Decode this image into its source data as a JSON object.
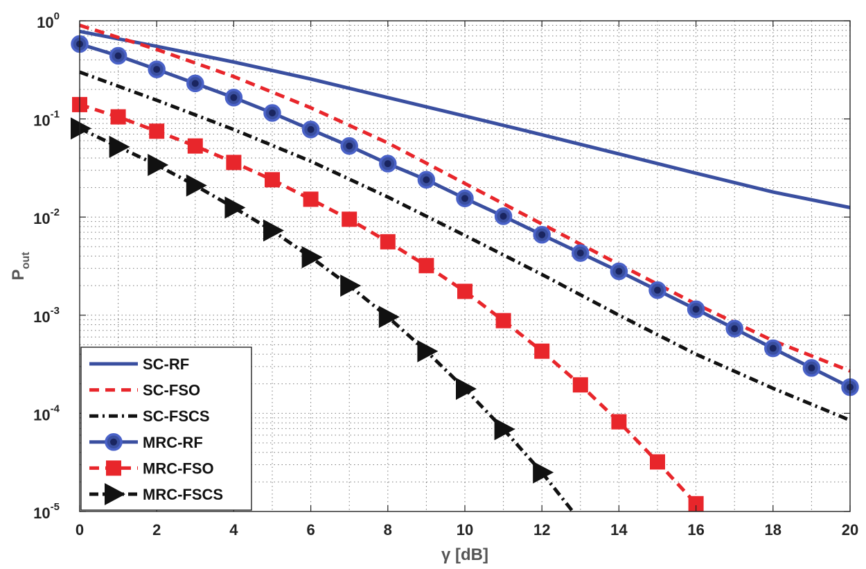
{
  "chart_data": {
    "type": "line",
    "xlabel": "γ [dB]",
    "ylabel": "P",
    "ylabel_sub": "out",
    "xlim": [
      0,
      20
    ],
    "ylim": [
      1e-05,
      1
    ],
    "yscale": "log",
    "grid": true,
    "legend_position": "bottom-left",
    "x_ticks": [
      {
        "value": 0,
        "label": "0"
      },
      {
        "value": 2,
        "label": "2"
      },
      {
        "value": 4,
        "label": "4"
      },
      {
        "value": 6,
        "label": "6"
      },
      {
        "value": 8,
        "label": "8"
      },
      {
        "value": 10,
        "label": "10"
      },
      {
        "value": 12,
        "label": "12"
      },
      {
        "value": 14,
        "label": "14"
      },
      {
        "value": 16,
        "label": "16"
      },
      {
        "value": 18,
        "label": "18"
      },
      {
        "value": 20,
        "label": "20"
      }
    ],
    "y_ticks": [
      {
        "value": 1,
        "base": "10",
        "exp": "0"
      },
      {
        "value": 0.1,
        "base": "10",
        "exp": "-1"
      },
      {
        "value": 0.01,
        "base": "10",
        "exp": "-2"
      },
      {
        "value": 0.001,
        "base": "10",
        "exp": "-3"
      },
      {
        "value": 0.0001,
        "base": "10",
        "exp": "-4"
      },
      {
        "value": 1e-05,
        "base": "10",
        "exp": "-5"
      }
    ],
    "series": [
      {
        "name": "SC-RF",
        "color": "#3a4fa0",
        "dash": "solid",
        "marker": "none",
        "x": [
          0,
          2,
          4,
          6,
          8,
          10,
          12,
          14,
          16,
          18,
          20
        ],
        "y": [
          0.78,
          0.55,
          0.38,
          0.255,
          0.165,
          0.107,
          0.069,
          0.044,
          0.028,
          0.018,
          0.0125
        ]
      },
      {
        "name": "SC-FSO",
        "color": "#e8262b",
        "dash": "dashed",
        "marker": "none",
        "x": [
          0,
          2,
          4,
          6,
          8,
          10,
          12,
          14,
          16,
          18,
          20
        ],
        "y": [
          0.9,
          0.51,
          0.27,
          0.13,
          0.057,
          0.022,
          0.0085,
          0.0033,
          0.0013,
          0.00055,
          0.00027
        ]
      },
      {
        "name": "SC-FSCS",
        "color": "#111111",
        "dash": "dashdot",
        "marker": "none",
        "x": [
          0,
          2,
          4,
          6,
          8,
          10,
          12,
          14,
          16,
          18,
          20
        ],
        "y": [
          0.3,
          0.155,
          0.078,
          0.037,
          0.016,
          0.0065,
          0.0026,
          0.001,
          0.0004,
          0.00018,
          8.5e-05
        ]
      },
      {
        "name": "MRC-RF",
        "color": "#3a4fa0",
        "dash": "solid",
        "marker": "circle",
        "x": [
          0,
          1,
          2,
          3,
          4,
          5,
          6,
          7,
          8,
          9,
          10,
          11,
          12,
          13,
          14,
          15,
          16,
          17,
          18,
          19,
          20
        ],
        "y": [
          0.58,
          0.44,
          0.32,
          0.23,
          0.165,
          0.115,
          0.078,
          0.053,
          0.035,
          0.024,
          0.0155,
          0.0102,
          0.0066,
          0.0043,
          0.0028,
          0.0018,
          0.00115,
          0.00073,
          0.00046,
          0.00029,
          0.000185
        ]
      },
      {
        "name": "MRC-FSO",
        "color": "#e8262b",
        "dash": "dashed",
        "marker": "square",
        "x": [
          0,
          1,
          2,
          3,
          4,
          5,
          6,
          7,
          8,
          9,
          10,
          11,
          12,
          13,
          14,
          15,
          16
        ],
        "y": [
          0.14,
          0.105,
          0.075,
          0.053,
          0.036,
          0.024,
          0.0152,
          0.0095,
          0.0056,
          0.0032,
          0.00175,
          0.00088,
          0.00043,
          0.000195,
          8.2e-05,
          3.2e-05,
          1.2e-05
        ]
      },
      {
        "name": "MRC-FSCS",
        "color": "#111111",
        "dash": "dashdot",
        "marker": "triangle",
        "x": [
          0,
          1,
          2,
          3,
          4,
          5,
          6,
          7,
          8,
          9,
          10,
          11,
          12,
          12.8
        ],
        "y": [
          0.08,
          0.052,
          0.034,
          0.021,
          0.0125,
          0.0073,
          0.0039,
          0.002,
          0.00096,
          0.00043,
          0.000178,
          6.9e-05,
          2.5e-05,
          1e-05
        ],
        "marker_count": 13
      }
    ]
  }
}
